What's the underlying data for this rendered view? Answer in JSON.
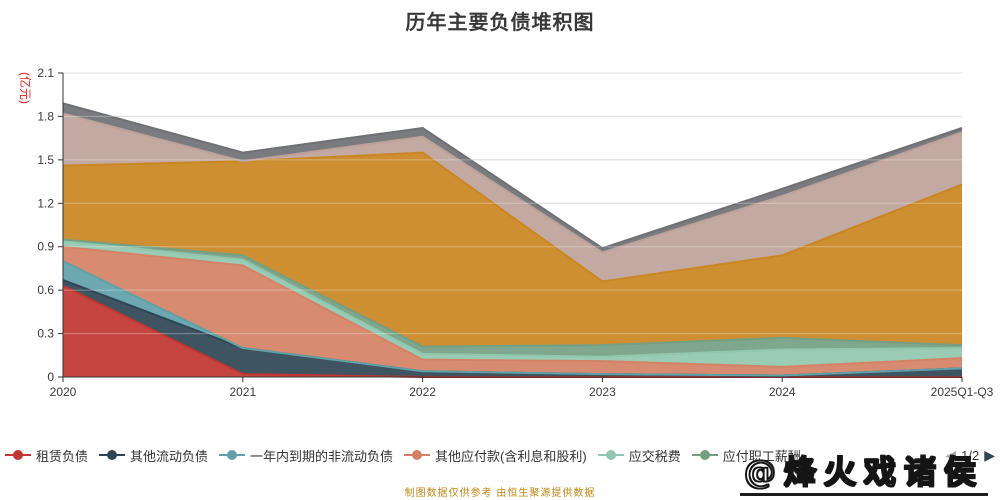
{
  "title": "历年主要负债堆积图",
  "y_axis": {
    "name": "(亿元)",
    "tick_labels": [
      "0",
      "0.3",
      "0.6",
      "0.9",
      "1.2",
      "1.5",
      "1.8",
      "2.1"
    ],
    "max": 2.1
  },
  "legend": {
    "pager": {
      "prev": "◀",
      "label": "1/2",
      "next": "▶",
      "prev_color": "#aaaaaa",
      "next_color": "#2f4554"
    }
  },
  "footer_note": "制图数据仅供参考 由恒生聚源提供数据",
  "watermark": "@烽火戏诸侯",
  "palette": {
    "axis": "#333333",
    "tick_text": "#3a3a3a",
    "gridline": "#cccccc",
    "title_text": "#383838",
    "unit_text": "#e02222",
    "footer_text": "#c08617"
  },
  "chart_data": {
    "type": "area",
    "stacked": true,
    "title": "历年主要负债堆积图",
    "xlabel": "",
    "ylabel": "(亿元)",
    "ylim": [
      0,
      2.1
    ],
    "y_tick_step": 0.3,
    "grid": true,
    "legend_position": "bottom",
    "categories": [
      "2020",
      "2021",
      "2022",
      "2023",
      "2024",
      "2025Q1-Q3"
    ],
    "series": [
      {
        "name": "租赁负债",
        "color": "#c23531",
        "legend_page": 1,
        "values": [
          0.63,
          0.02,
          0.0,
          0.0,
          0.0,
          0.0
        ]
      },
      {
        "name": "其他流动负债",
        "color": "#2f4554",
        "legend_page": 1,
        "values": [
          0.04,
          0.18,
          0.04,
          0.02,
          0.01,
          0.06
        ]
      },
      {
        "name": "一年内到期的非流动负债",
        "color": "#61a0a8",
        "legend_page": 1,
        "values": [
          0.13,
          0.0,
          0.0,
          0.0,
          0.0,
          0.0
        ]
      },
      {
        "name": "其他应付款(含利息和股利)",
        "color": "#d48265",
        "legend_page": 1,
        "values": [
          0.1,
          0.57,
          0.08,
          0.09,
          0.06,
          0.07
        ]
      },
      {
        "name": "应交税费",
        "color": "#91c7ae",
        "legend_page": 1,
        "values": [
          0.04,
          0.04,
          0.04,
          0.03,
          0.12,
          0.07
        ]
      },
      {
        "name": "应付职工薪酬",
        "color": "#749f83",
        "legend_page": 1,
        "values": [
          0.01,
          0.03,
          0.05,
          0.08,
          0.08,
          0.02
        ]
      },
      {
        "name": "",
        "color": "#ca8622",
        "legend_page": 2,
        "values": [
          0.51,
          0.65,
          1.34,
          0.44,
          0.57,
          1.11
        ]
      },
      {
        "name": "",
        "color": "#bda29a",
        "legend_page": 2,
        "values": [
          0.36,
          0.0,
          0.11,
          0.2,
          0.41,
          0.36
        ]
      },
      {
        "name": "",
        "color": "#6e7074",
        "legend_page": 2,
        "values": [
          0.07,
          0.06,
          0.06,
          0.03,
          0.05,
          0.03
        ]
      }
    ]
  }
}
